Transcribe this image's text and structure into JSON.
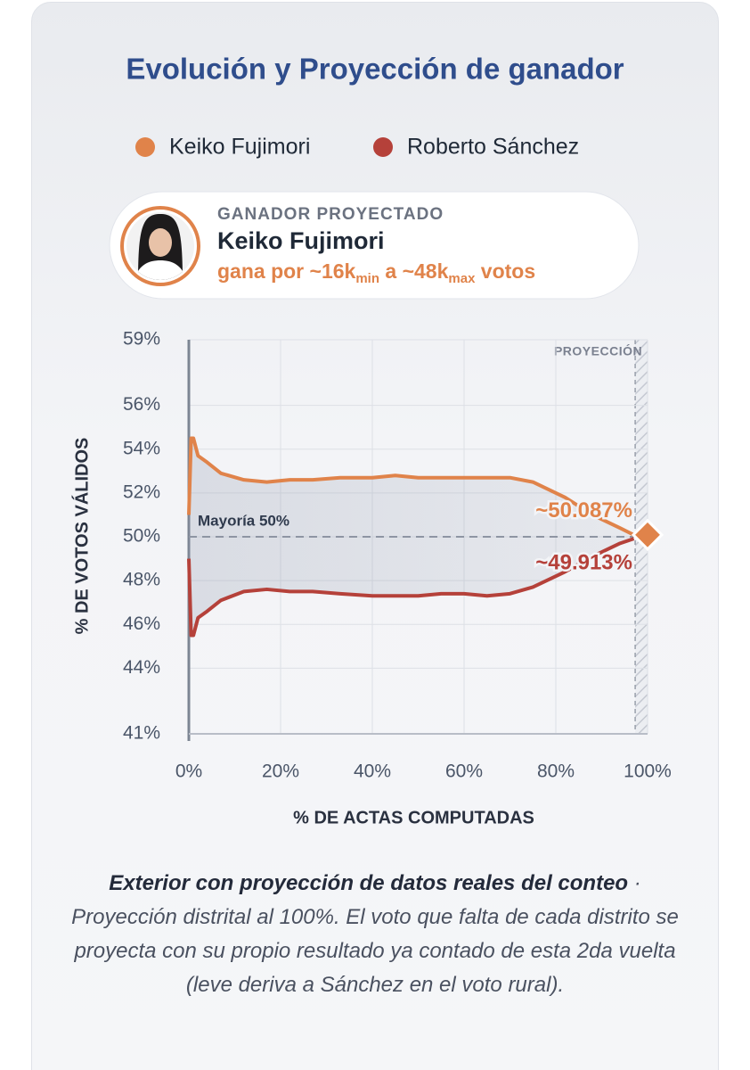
{
  "chart_data": {
    "type": "line",
    "title": "Evolución y Proyección de ganador",
    "x_label": "% DE ACTAS COMPUTADAS",
    "y_label": "% DE VOTOS VÁLIDOS",
    "x": [
      0,
      0.5,
      1,
      2,
      4,
      7,
      12,
      17,
      22,
      27,
      33,
      40,
      45,
      50,
      55,
      60,
      65,
      70,
      75,
      82,
      88,
      94,
      97
    ],
    "series": [
      {
        "name": "Keiko Fujimori",
        "color": "#e0834a",
        "values": [
          51,
          54.5,
          54.5,
          53.7,
          53.4,
          52.9,
          52.6,
          52.5,
          52.6,
          52.6,
          52.7,
          52.7,
          52.8,
          52.7,
          52.7,
          52.7,
          52.7,
          52.7,
          52.5,
          51.8,
          51,
          50.4,
          50.087
        ],
        "value_labels": [
          null,
          null,
          null,
          null,
          null,
          null,
          null,
          null,
          null,
          null,
          null,
          null,
          null,
          null,
          null,
          null,
          null,
          null,
          null,
          null,
          null,
          null,
          "~50.087%"
        ]
      },
      {
        "name": "Roberto Sánchez",
        "color": "#b5413a",
        "values": [
          49,
          45.5,
          45.5,
          46.3,
          46.6,
          47.1,
          47.5,
          47.6,
          47.5,
          47.5,
          47.4,
          47.3,
          47.3,
          47.3,
          47.4,
          47.4,
          47.3,
          47.4,
          47.7,
          48.4,
          49.1,
          49.7,
          49.913
        ],
        "value_labels": [
          null,
          null,
          null,
          null,
          null,
          null,
          null,
          null,
          null,
          null,
          null,
          null,
          null,
          null,
          null,
          null,
          null,
          null,
          null,
          null,
          null,
          null,
          "~49.913%"
        ]
      }
    ],
    "xlim": [
      0,
      100
    ],
    "xticks": [
      {
        "value": 0,
        "label": "0%"
      },
      {
        "value": 20,
        "label": "20%"
      },
      {
        "value": 40,
        "label": "40%"
      },
      {
        "value": 60,
        "label": "60%"
      },
      {
        "value": 80,
        "label": "80%"
      },
      {
        "value": 100,
        "label": "100%"
      }
    ],
    "ylim": [
      41,
      59
    ],
    "yticks": [
      {
        "value": 41,
        "label": "41%"
      },
      {
        "value": 44,
        "label": "44%"
      },
      {
        "value": 46,
        "label": "46%"
      },
      {
        "value": 48,
        "label": "48%"
      },
      {
        "value": 50,
        "label": "50%"
      },
      {
        "value": 52,
        "label": "52%"
      },
      {
        "value": 54,
        "label": "54%"
      },
      {
        "value": 56,
        "label": "56%"
      },
      {
        "value": 59,
        "label": "59%"
      }
    ],
    "grid": true,
    "majority": {
      "value": 50,
      "label": "Mayoría 50%"
    },
    "projection_zone": {
      "start": 97.3,
      "label": "PROYECCIÓN"
    },
    "projection_marker": {
      "x": 100,
      "value": 50.087,
      "color": "#e0834a"
    }
  },
  "winner": {
    "label": "GANADOR PROYECTADO",
    "name": "Keiko Fujimori",
    "margin": [
      "gana por ~16k",
      "min",
      " a ~48k",
      "max",
      " votos"
    ]
  },
  "footnote": {
    "lead": "Exterior con proyección de datos reales del conteo",
    "body": " · Proyección distrital al 100%. El voto que falta de cada distrito se proyecta con su propio resultado ya contado de esta 2da vuelta (leve deriva a Sánchez en el voto rural)."
  }
}
